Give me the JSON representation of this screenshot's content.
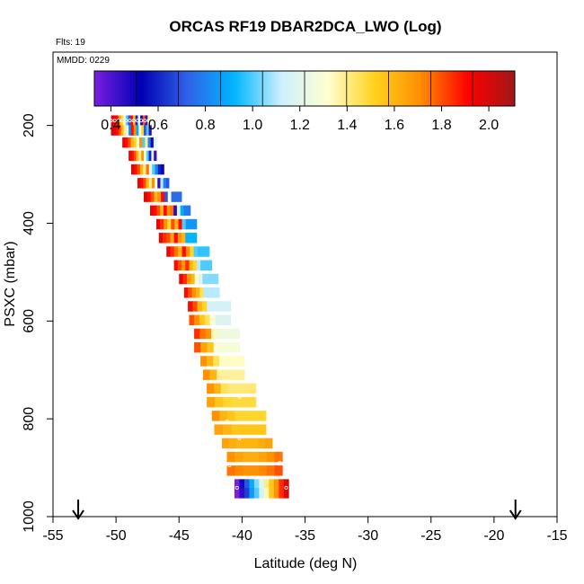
{
  "chart_data": {
    "type": "heatmap",
    "title": "ORCAS RF19 DBAR2DCA_LWO (Log)",
    "flights_label": "Flts: 19",
    "mmdd_label": "MMDD: 0229",
    "xlabel": "Latitude (deg N)",
    "ylabel": "PSXC (mbar)",
    "xlim": [
      -55,
      -15
    ],
    "ylim": [
      1000,
      50
    ],
    "y_reversed": true,
    "xticks": [
      -55,
      -50,
      -45,
      -40,
      -35,
      -30,
      -25,
      -20,
      -15
    ],
    "yticks": [
      200,
      400,
      600,
      800,
      1000
    ],
    "colorbar": {
      "range": [
        0.33,
        2.11
      ],
      "ticks": [
        0.4,
        0.6,
        0.8,
        1.0,
        1.2,
        1.4,
        1.6,
        1.8,
        2.0
      ],
      "tick_labels": [
        "0.4",
        "0.6",
        "0.8",
        "1.0",
        "1.2",
        "1.4",
        "1.6",
        "1.8",
        "2.0"
      ],
      "stops": [
        "#7a1fe0",
        "#0000b4",
        "#2f63e8",
        "#00b6ff",
        "#cdefff",
        "#ffffd0",
        "#ffd21e",
        "#ff8c00",
        "#ff0000",
        "#a01818"
      ]
    },
    "rows": [
      {
        "p": 190,
        "lat_start": -50.4,
        "lat_end": -47.3,
        "pattern": [
          2.0,
          1.95,
          1.9,
          1.7,
          1.5,
          1.3,
          1.0,
          0.7,
          1.9,
          1.6,
          0.6,
          1.2,
          0.5,
          1.8,
          0.45,
          1.4
        ]
      },
      {
        "p": 210,
        "lat_start": -50.4,
        "lat_end": -47.2,
        "pattern": [
          2.0,
          1.95,
          1.9,
          1.8,
          1.6,
          1.4,
          1.2,
          0.8,
          1.9,
          1.7,
          0.9,
          1.3,
          1.5,
          0.7,
          1.0,
          0.45
        ]
      },
      {
        "p": 235,
        "lat_start": -49.5,
        "lat_end": -46.8,
        "pattern": [
          1.95,
          1.9,
          1.8,
          1.6,
          1.5,
          1.3,
          1.7,
          1.0,
          1.4,
          0.8,
          0.5,
          1.2
        ]
      },
      {
        "p": 262,
        "lat_start": -49.0,
        "lat_end": -46.8,
        "pattern": [
          1.95,
          1.9,
          1.8,
          1.6,
          1.4,
          1.7,
          1.3,
          1.0,
          0.6,
          1.2,
          0.45
        ]
      },
      {
        "p": 290,
        "lat_start": -48.8,
        "lat_end": -46.2,
        "pattern": [
          2.0,
          1.9,
          1.8,
          1.6,
          1.4,
          1.75,
          1.2,
          1.0,
          0.8,
          0.6,
          0.5
        ]
      },
      {
        "p": 318,
        "lat_start": -48.3,
        "lat_end": -45.8,
        "pattern": [
          1.95,
          1.9,
          1.8,
          1.6,
          1.4,
          1.7,
          1.3,
          0.45,
          1.1,
          0.8,
          0.7
        ]
      },
      {
        "p": 346,
        "lat_start": -47.8,
        "lat_end": -44.8,
        "pattern": [
          2.0,
          1.9,
          1.8,
          1.6,
          1.7,
          1.9,
          0.7,
          1.3,
          0.75,
          0.75,
          0.75
        ]
      },
      {
        "p": 374,
        "lat_start": -47.3,
        "lat_end": -44.1,
        "pattern": [
          1.95,
          1.9,
          1.8,
          1.6,
          1.9,
          1.7,
          1.75,
          0.45,
          1.2,
          0.9,
          0.78,
          0.78
        ]
      },
      {
        "p": 402,
        "lat_start": -46.8,
        "lat_end": -43.6,
        "pattern": [
          1.95,
          1.85,
          1.7,
          1.5,
          1.8,
          1.6,
          1.9,
          1.0,
          0.85,
          0.85,
          0.85
        ]
      },
      {
        "p": 430,
        "lat_start": -46.6,
        "lat_end": -43.6,
        "pattern": [
          1.95,
          1.85,
          1.8,
          1.65,
          1.9,
          1.7,
          1.6,
          0.92,
          0.92,
          0.92
        ]
      },
      {
        "p": 458,
        "lat_start": -46.0,
        "lat_end": -42.6,
        "pattern": [
          1.95,
          1.85,
          1.75,
          1.6,
          1.9,
          1.7,
          1.5,
          1.0,
          0.97,
          0.97,
          0.97
        ]
      },
      {
        "p": 486,
        "lat_start": -45.4,
        "lat_end": -42.4,
        "pattern": [
          1.9,
          1.8,
          1.7,
          1.85,
          1.6,
          1.5,
          1.1,
          1.0,
          1.0,
          1.0
        ]
      },
      {
        "p": 514,
        "lat_start": -45.0,
        "lat_end": -41.9,
        "pattern": [
          1.95,
          1.85,
          1.7,
          1.6,
          1.3,
          1.2,
          1.05,
          1.05,
          1.05,
          1.05
        ]
      },
      {
        "p": 542,
        "lat_start": -44.6,
        "lat_end": -41.8,
        "pattern": [
          1.9,
          1.8,
          1.7,
          1.6,
          1.45,
          1.1,
          1.1,
          1.1,
          1.1
        ]
      },
      {
        "p": 570,
        "lat_start": -44.3,
        "lat_end": -40.9,
        "pattern": [
          1.9,
          1.8,
          1.6,
          1.5,
          1.15,
          1.15,
          1.15,
          1.15,
          1.15
        ]
      },
      {
        "p": 598,
        "lat_start": -44.2,
        "lat_end": -40.9,
        "pattern": [
          1.8,
          1.7,
          1.55,
          1.45,
          1.3,
          1.18,
          1.18,
          1.18
        ]
      },
      {
        "p": 626,
        "lat_start": -43.8,
        "lat_end": -40.2,
        "pattern": [
          1.85,
          1.75,
          1.7,
          1.35,
          1.25,
          1.25,
          1.25,
          1.25
        ]
      },
      {
        "p": 654,
        "lat_start": -43.8,
        "lat_end": -40.2,
        "pattern": [
          1.8,
          1.65,
          1.55,
          1.3,
          1.28,
          1.28,
          1.28
        ]
      },
      {
        "p": 682,
        "lat_start": -43.3,
        "lat_end": -39.8,
        "pattern": [
          1.7,
          1.6,
          1.45,
          1.33,
          1.33,
          1.33,
          1.33
        ]
      },
      {
        "p": 710,
        "lat_start": -43.1,
        "lat_end": -39.8,
        "pattern": [
          1.7,
          1.6,
          1.38,
          1.38,
          1.38,
          1.38
        ]
      },
      {
        "p": 738,
        "lat_start": -42.8,
        "lat_end": -38.9,
        "pattern": [
          1.7,
          1.6,
          1.45,
          1.42,
          1.42,
          1.42,
          1.42
        ]
      },
      {
        "p": 766,
        "lat_start": -42.8,
        "lat_end": -38.9,
        "pattern": [
          1.65,
          1.55,
          1.5,
          1.48,
          1.48,
          1.48
        ]
      },
      {
        "p": 794,
        "lat_start": -42.4,
        "lat_end": -38.1,
        "pattern": [
          1.7,
          1.6,
          1.55,
          1.5,
          1.5,
          1.5,
          1.5
        ]
      },
      {
        "p": 822,
        "lat_start": -42.2,
        "lat_end": -38.1,
        "pattern": [
          1.65,
          1.6,
          1.55,
          1.55,
          1.55,
          1.55
        ]
      },
      {
        "p": 850,
        "lat_start": -41.6,
        "lat_end": -37.6,
        "pattern": [
          1.65,
          1.62,
          1.6,
          1.6,
          1.6,
          1.62,
          1.65
        ]
      },
      {
        "p": 878,
        "lat_start": -41.2,
        "lat_end": -36.8,
        "pattern": [
          1.7,
          1.65,
          1.62,
          1.62,
          1.65,
          1.7,
          1.75
        ]
      },
      {
        "p": 906,
        "lat_start": -41.2,
        "lat_end": -36.8,
        "pattern": [
          1.75,
          1.72,
          1.7,
          1.7,
          1.72,
          1.75,
          1.8
        ]
      },
      {
        "p": 934,
        "lat_start": -40.6,
        "lat_end": -36.3,
        "pattern": [
          0.33,
          0.5,
          0.7,
          0.9,
          1.05,
          1.2,
          1.4,
          1.55,
          1.7,
          1.85,
          2.0
        ]
      },
      {
        "p": 952,
        "lat_start": -40.6,
        "lat_end": -36.3,
        "pattern": [
          0.33,
          0.45,
          0.65,
          0.85,
          1.0,
          1.15,
          1.35,
          1.55,
          1.7,
          1.85,
          2.0
        ]
      }
    ],
    "markers": [
      {
        "lat": -50.4,
        "p": 190
      },
      {
        "lat": -50.1,
        "p": 190
      },
      {
        "lat": -49.8,
        "p": 190
      },
      {
        "lat": -49.5,
        "p": 190
      },
      {
        "lat": -49.2,
        "p": 190
      },
      {
        "lat": -48.9,
        "p": 190
      },
      {
        "lat": -48.6,
        "p": 190
      },
      {
        "lat": -48.3,
        "p": 190
      },
      {
        "lat": -48.0,
        "p": 190
      },
      {
        "lat": -47.7,
        "p": 190
      },
      {
        "lat": -47.4,
        "p": 190
      },
      {
        "lat": -42.9,
        "p": 555
      },
      {
        "lat": -42.2,
        "p": 610
      },
      {
        "lat": -43.3,
        "p": 700
      },
      {
        "lat": -40.2,
        "p": 755
      },
      {
        "lat": -41.2,
        "p": 805
      },
      {
        "lat": -40.2,
        "p": 840
      },
      {
        "lat": -41.0,
        "p": 895
      },
      {
        "lat": -37.0,
        "p": 890
      },
      {
        "lat": -40.4,
        "p": 941
      },
      {
        "lat": -36.5,
        "p": 941
      }
    ],
    "arrows": [
      {
        "lat": -53.0,
        "label": ""
      },
      {
        "lat": -18.3,
        "label": ""
      }
    ]
  }
}
